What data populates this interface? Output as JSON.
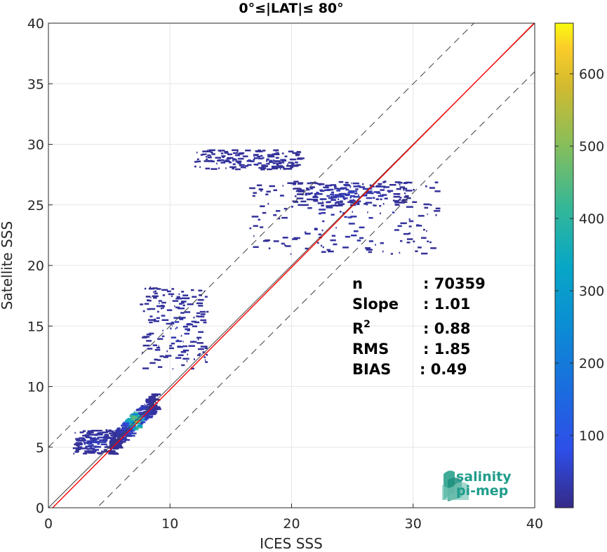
{
  "chart_data": {
    "type": "heatmap",
    "title": "0°≤|LAT|≤ 80°",
    "xlabel": "ICES SSS",
    "ylabel": "Satellite SSS",
    "xlim": [
      0,
      40
    ],
    "ylim": [
      0,
      40
    ],
    "xticks": [
      "0",
      "10",
      "20",
      "30",
      "40"
    ],
    "yticks": [
      "0",
      "5",
      "10",
      "15",
      "20",
      "25",
      "30",
      "35",
      "40"
    ],
    "grid": true,
    "colorbar": {
      "range": [
        0,
        670
      ],
      "ticks": [
        "100",
        "200",
        "300",
        "400",
        "500",
        "600"
      ],
      "colormap": "parula"
    },
    "reference_lines": [
      {
        "name": "1:1",
        "color": "#404040",
        "style": "solid",
        "intercept": 0,
        "slope": 1
      },
      {
        "name": "upper",
        "color": "#404040",
        "style": "dashed",
        "intercept": 5,
        "slope": 1
      },
      {
        "name": "lower",
        "color": "#404040",
        "style": "dashed",
        "intercept": -4,
        "slope": 1
      },
      {
        "name": "fit",
        "color": "#ff0000",
        "style": "solid",
        "intercept": -0.35,
        "slope": 1.01
      }
    ],
    "clusters": [
      {
        "x": [
          5.0,
          8.8
        ],
        "y": [
          5.0,
          9.5
        ],
        "peak": 600
      },
      {
        "x": [
          2.0,
          5.5
        ],
        "y": [
          4.5,
          6.5
        ],
        "peak": 40
      },
      {
        "x": [
          7.5,
          13.0
        ],
        "y": [
          11.5,
          18.3
        ],
        "peak": 25
      },
      {
        "x": [
          12.0,
          20.5
        ],
        "y": [
          28.0,
          29.6
        ],
        "peak": 15
      },
      {
        "x": [
          16.5,
          32.0
        ],
        "y": [
          21.0,
          27.0
        ],
        "peak": 25
      },
      {
        "x": [
          20.0,
          29.5
        ],
        "y": [
          25.0,
          27.0
        ],
        "peak": 40
      }
    ],
    "stats": [
      {
        "label": "n",
        "value": ": 70359"
      },
      {
        "label": "Slope",
        "value": ": 1.01"
      },
      {
        "label": "R",
        "sup": "2",
        "value": ": 0.88"
      },
      {
        "label": "RMS",
        "value": ": 1.85"
      },
      {
        "label": "BIAS",
        "value": ": 0.49"
      }
    ]
  },
  "logo": {
    "line1": "salinity",
    "line2": "pi-mep"
  },
  "colors": {
    "fit_line": "#ff0000",
    "identity_line": "#404040",
    "logo_teal": "#1f9c8a"
  }
}
